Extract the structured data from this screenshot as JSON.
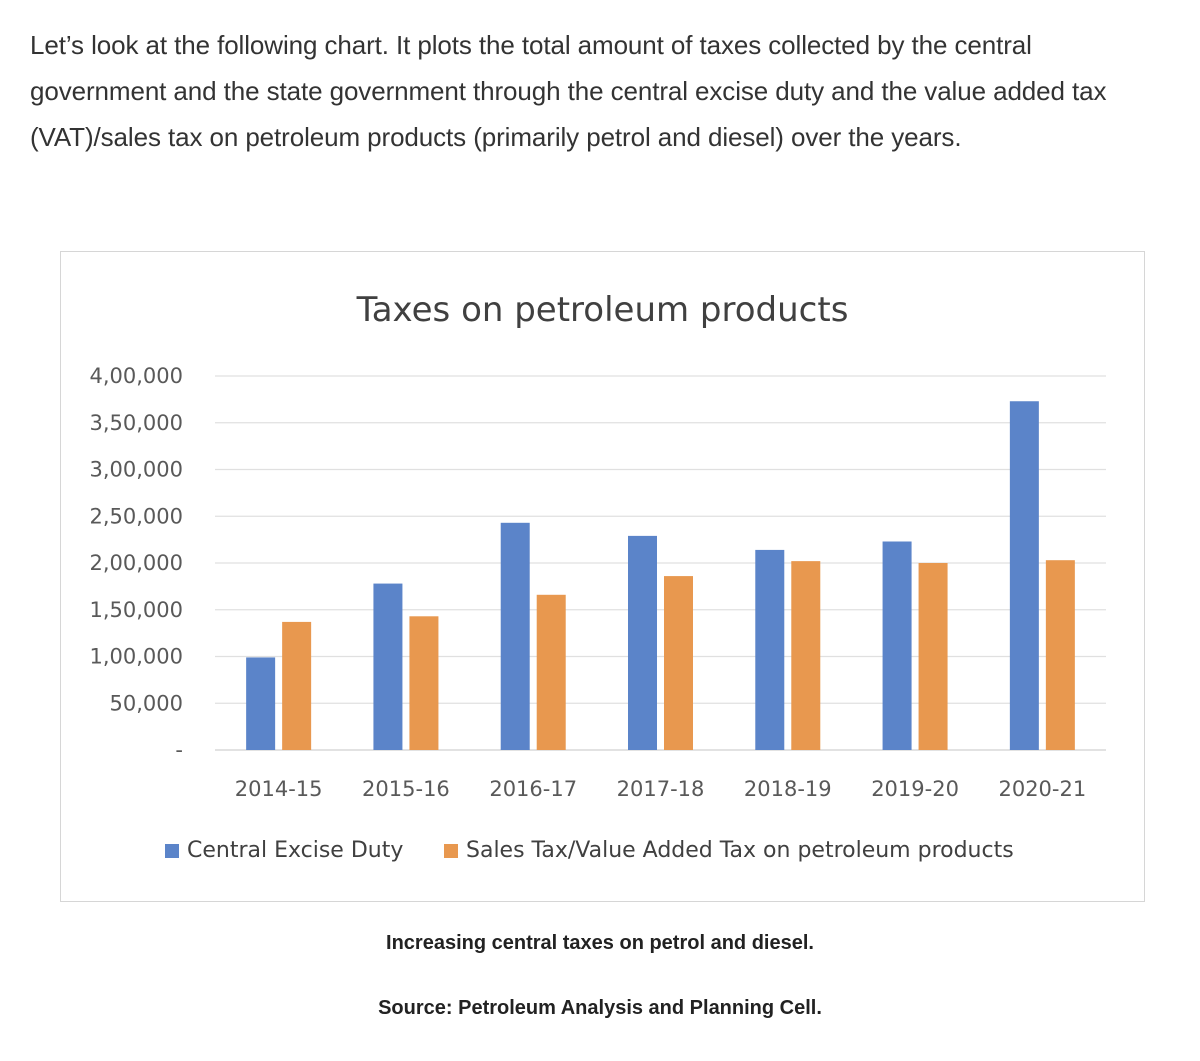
{
  "article": {
    "intro": "Let’s look at the following chart. It plots the total amount of taxes collected by the central government and the state government through the central excise duty and the value added tax (VAT)/sales tax on petroleum products (primarily petrol and diesel) over the years."
  },
  "chart_data": {
    "type": "bar",
    "title": "Taxes on petroleum products",
    "xlabel": "",
    "ylabel": "",
    "categories": [
      "2014-15",
      "2015-16",
      "2016-17",
      "2017-18",
      "2018-19",
      "2019-20",
      "2020-21"
    ],
    "series": [
      {
        "name": "Central Excise Duty",
        "color": "#5b84c9",
        "values": [
          99000,
          178000,
          243000,
          229000,
          214000,
          223000,
          373000
        ]
      },
      {
        "name": "Sales Tax/Value Added Tax on petroleum products",
        "color": "#e8984f",
        "values": [
          137000,
          143000,
          166000,
          186000,
          202000,
          200000,
          203000
        ]
      }
    ],
    "ylim": [
      0,
      400000
    ],
    "yticks": [
      0,
      50000,
      100000,
      150000,
      200000,
      250000,
      300000,
      350000,
      400000
    ],
    "ytick_labels": [
      "-",
      "50,000",
      "1,00,000",
      "1,50,000",
      "2,00,000",
      "2,50,000",
      "3,00,000",
      "3,50,000",
      "4,00,000"
    ],
    "grid": true,
    "legend_position": "bottom"
  },
  "captions": {
    "figure_caption": "Increasing central taxes on petrol and diesel.",
    "source": "Source: Petroleum Analysis and Planning Cell."
  }
}
